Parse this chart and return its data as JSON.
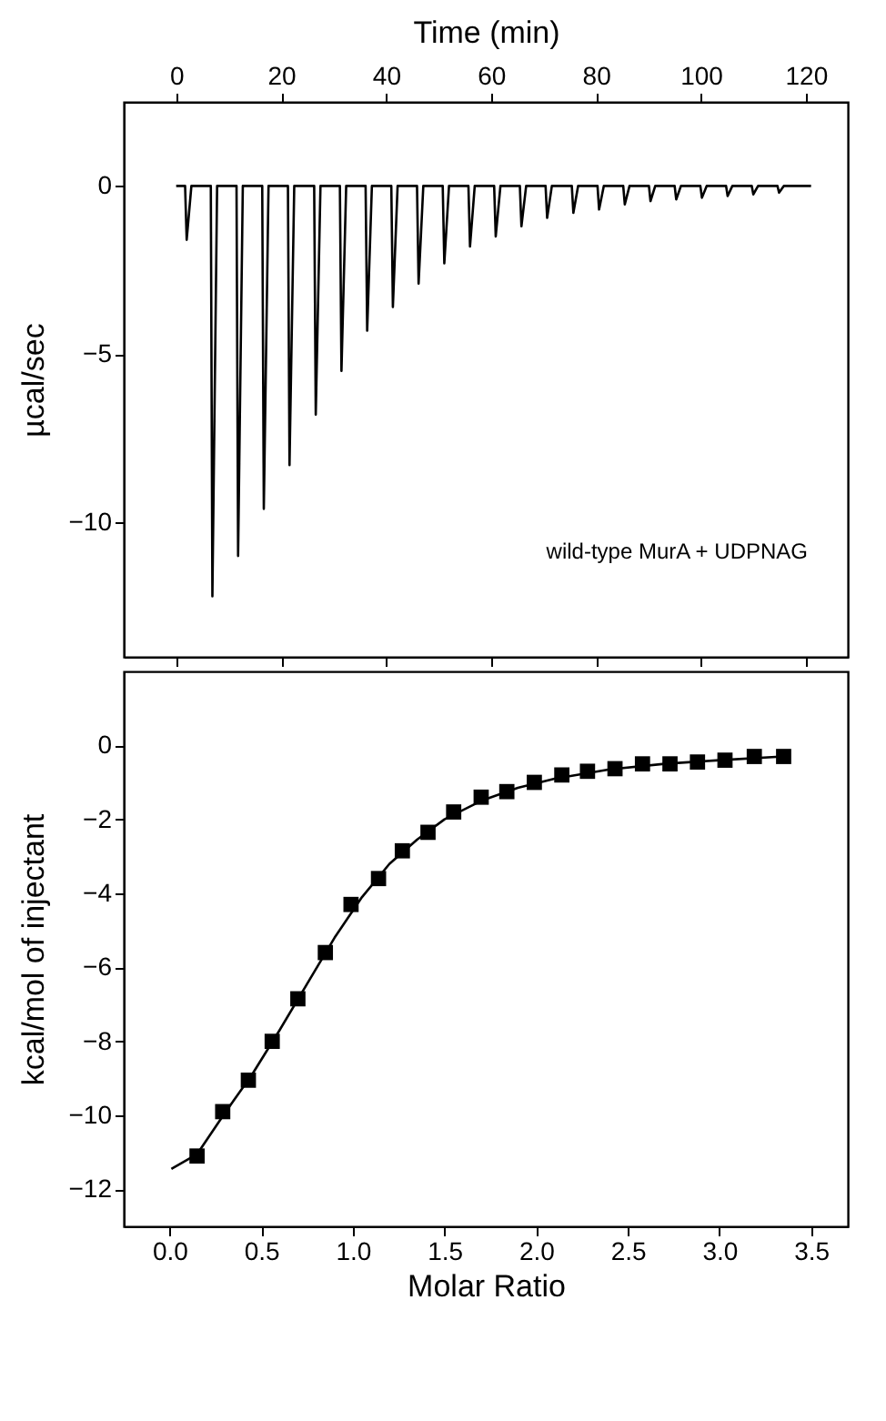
{
  "chart_data": [
    {
      "type": "line",
      "x2label": "Time (min)",
      "ylabel": "µcal/sec",
      "xlim": [
        -10,
        128
      ],
      "xticks": [
        0,
        20,
        40,
        60,
        80,
        100,
        120
      ],
      "x2lim": [
        -10,
        128
      ],
      "x2ticks": [
        0,
        20,
        40,
        60,
        80,
        100,
        120
      ],
      "ylim": [
        -14,
        2.5
      ],
      "yticks": [
        0,
        -5,
        -10
      ],
      "tick_labels": "y",
      "grid": false,
      "line_style": "solid",
      "annotations": [
        "wild-type  MurA + UDPNAG"
      ],
      "series": [
        {
          "color": "#000000",
          "x": [
            0,
            1.7,
            2.0,
            2.9,
            6.6,
            6.9,
            7.8,
            11.5,
            11.8,
            12.7,
            16.4,
            16.7,
            17.6,
            21.3,
            21.6,
            22.5,
            26.3,
            26.6,
            27.5,
            31.2,
            31.5,
            32.4,
            36.1,
            36.4,
            37.3,
            41.0,
            41.3,
            42.2,
            45.9,
            46.2,
            47.1,
            50.8,
            51.1,
            52.0,
            55.7,
            56.0,
            56.9,
            60.6,
            60.9,
            61.8,
            65.5,
            65.8,
            66.7,
            70.4,
            70.7,
            71.6,
            75.4,
            75.7,
            76.6,
            80.3,
            80.6,
            81.5,
            85.2,
            85.5,
            86.4,
            90.1,
            90.4,
            91.3,
            95.0,
            95.3,
            96.2,
            99.9,
            100.2,
            101.1,
            104.8,
            105.1,
            106.0,
            109.7,
            110.0,
            110.9,
            114.6,
            114.9,
            115.8,
            121
          ],
          "values": [
            0,
            0,
            -1.6,
            0,
            0,
            -12.2,
            0,
            0,
            -11.0,
            0,
            0,
            -9.6,
            0,
            0,
            -8.3,
            0,
            0,
            -6.8,
            0,
            0,
            -5.5,
            0,
            0,
            -4.3,
            0,
            0,
            -3.6,
            0,
            0,
            -2.9,
            0,
            0,
            -2.3,
            0,
            0,
            -1.8,
            0,
            0,
            -1.5,
            0,
            0,
            -1.2,
            0,
            0,
            -0.95,
            0,
            0,
            -0.8,
            0,
            0,
            -0.7,
            0,
            0,
            -0.55,
            0,
            0,
            -0.45,
            0,
            0,
            -0.4,
            0,
            0,
            -0.35,
            0,
            0,
            -0.3,
            0,
            0,
            -0.25,
            0,
            0,
            -0.2,
            0,
            0
          ]
        }
      ]
    },
    {
      "type": "scatter",
      "xlabel": "Molar Ratio",
      "ylabel": "kcal/mol of injectant",
      "xlim": [
        -0.25,
        3.7
      ],
      "xticks": [
        {
          "value": 0,
          "label": "0.0"
        },
        0.5,
        {
          "value": 1,
          "label": "1.0"
        },
        1.5,
        {
          "value": 2,
          "label": "2.0"
        },
        2.5,
        {
          "value": 3,
          "label": "3.0"
        },
        3.5
      ],
      "ylim": [
        -13,
        2
      ],
      "yticks": [
        0,
        -2,
        -4,
        -6,
        -8,
        -10,
        -12
      ],
      "grid": false,
      "marker": "square",
      "series": [
        {
          "color": "#000000",
          "x": [
            0.15,
            0.29,
            0.43,
            0.56,
            0.7,
            0.85,
            0.99,
            1.14,
            1.27,
            1.41,
            1.55,
            1.7,
            1.84,
            1.99,
            2.14,
            2.28,
            2.43,
            2.58,
            2.73,
            2.88,
            3.03,
            3.19,
            3.35
          ],
          "values": [
            -11.1,
            -9.9,
            -9.05,
            -8.0,
            -6.85,
            -5.6,
            -4.3,
            -3.6,
            -2.85,
            -2.35,
            -1.8,
            -1.4,
            -1.25,
            -1.0,
            -0.8,
            -0.7,
            -0.63,
            -0.5,
            -0.5,
            -0.45,
            -0.4,
            -0.3,
            -0.3
          ]
        },
        {
          "type": "line",
          "marker": "none",
          "color": "#000000",
          "x": [
            0.01,
            0.15,
            0.3,
            0.45,
            0.6,
            0.75,
            0.9,
            1.05,
            1.2,
            1.35,
            1.5,
            1.7,
            1.9,
            2.1,
            2.4,
            2.7,
            3.0,
            3.35
          ],
          "values": [
            -11.45,
            -11.05,
            -9.95,
            -8.9,
            -7.7,
            -6.45,
            -5.2,
            -4.1,
            -3.2,
            -2.55,
            -2.0,
            -1.5,
            -1.15,
            -0.9,
            -0.65,
            -0.5,
            -0.4,
            -0.3
          ]
        }
      ]
    }
  ]
}
